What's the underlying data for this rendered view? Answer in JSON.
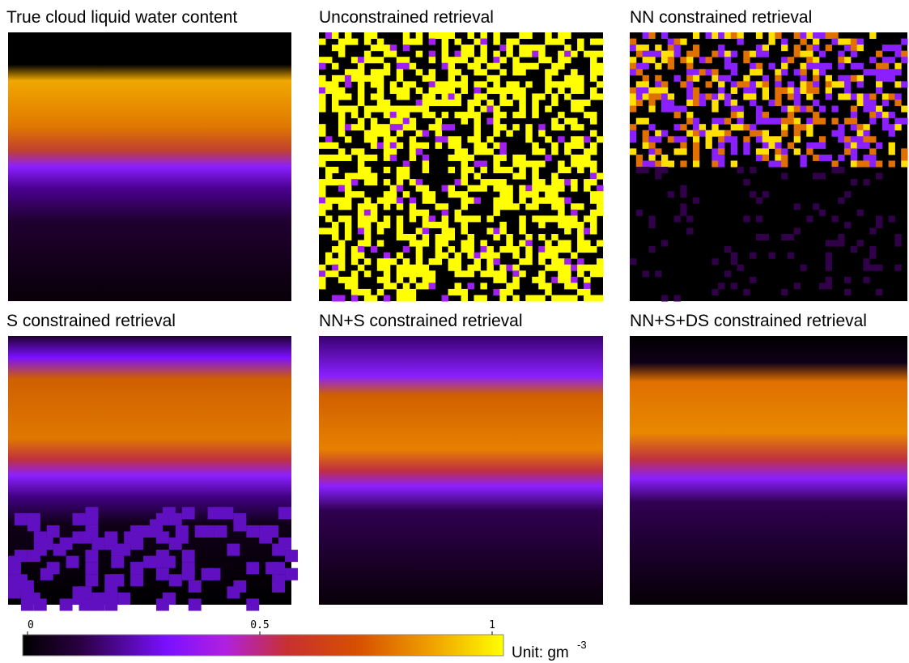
{
  "panels": [
    {
      "title": "True cloud liquid water content"
    },
    {
      "title": "Unconstrained retrieval"
    },
    {
      "title": "NN constrained retrieval"
    },
    {
      "title": "S constrained retrieval"
    },
    {
      "title": "NN+S constrained retrieval"
    },
    {
      "title": "NN+S+DS constrained retrieval"
    }
  ],
  "colorbar": {
    "lim": [
      0,
      1
    ],
    "ticks": [
      0,
      0.5,
      1
    ],
    "unit": "Unit: gm",
    "unit_exponent": "-3"
  }
}
